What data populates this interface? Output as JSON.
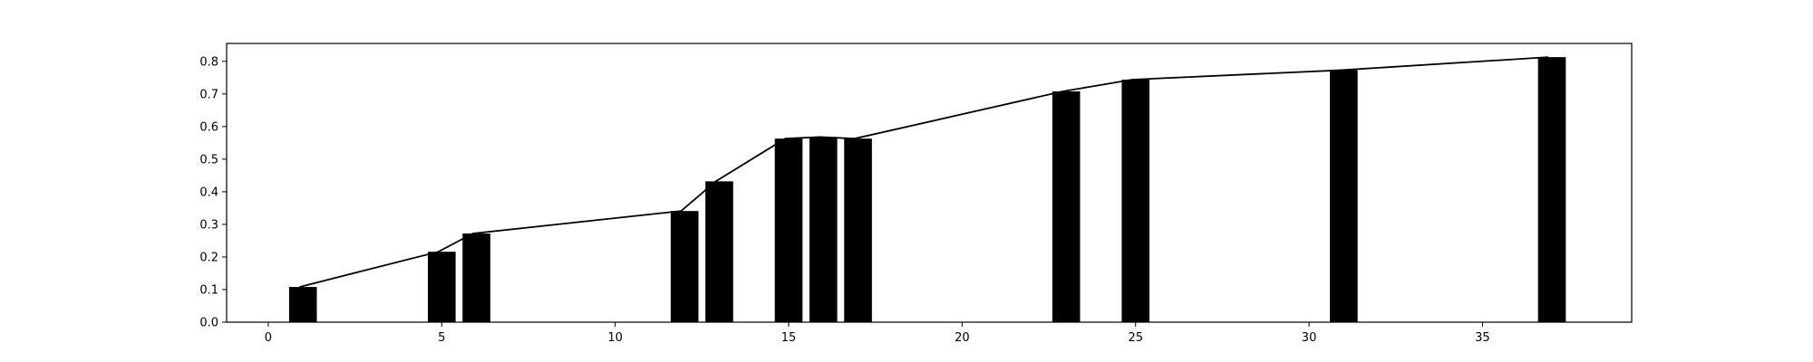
{
  "chart_data": {
    "type": "bar",
    "title": "",
    "xlabel": "",
    "ylabel": "",
    "xlim": [
      -1.2,
      39.3
    ],
    "ylim": [
      0,
      0.855
    ],
    "grid": false,
    "bar_color": "#000000",
    "line_color": "#000000",
    "bar_width": 0.8,
    "x_ticks": [
      0,
      5,
      10,
      15,
      20,
      25,
      30,
      35
    ],
    "y_ticks": [
      0.0,
      0.1,
      0.2,
      0.3,
      0.4,
      0.5,
      0.6,
      0.7,
      0.8
    ],
    "x_tick_labels": [
      "0",
      "5",
      "10",
      "15",
      "20",
      "25",
      "30",
      "35"
    ],
    "y_tick_labels": [
      "0.0",
      "0.1",
      "0.2",
      "0.3",
      "0.4",
      "0.5",
      "0.6",
      "0.7",
      "0.8"
    ],
    "bars": [
      {
        "x": 1,
        "value": 0.108
      },
      {
        "x": 5,
        "value": 0.216
      },
      {
        "x": 6,
        "value": 0.272
      },
      {
        "x": 12,
        "value": 0.341
      },
      {
        "x": 13,
        "value": 0.432
      },
      {
        "x": 15,
        "value": 0.563
      },
      {
        "x": 16,
        "value": 0.568
      },
      {
        "x": 17,
        "value": 0.563
      },
      {
        "x": 23,
        "value": 0.708
      },
      {
        "x": 25,
        "value": 0.744
      },
      {
        "x": 31,
        "value": 0.773
      },
      {
        "x": 37,
        "value": 0.813
      }
    ],
    "line": [
      {
        "x": 0.9,
        "y": 0.108
      },
      {
        "x": 4.9,
        "y": 0.216
      },
      {
        "x": 5.9,
        "y": 0.272
      },
      {
        "x": 11.9,
        "y": 0.341
      },
      {
        "x": 12.9,
        "y": 0.432
      },
      {
        "x": 14.9,
        "y": 0.563
      },
      {
        "x": 15.9,
        "y": 0.568
      },
      {
        "x": 16.9,
        "y": 0.563
      },
      {
        "x": 22.9,
        "y": 0.708
      },
      {
        "x": 24.9,
        "y": 0.744
      },
      {
        "x": 30.9,
        "y": 0.773
      },
      {
        "x": 36.9,
        "y": 0.813
      }
    ]
  }
}
